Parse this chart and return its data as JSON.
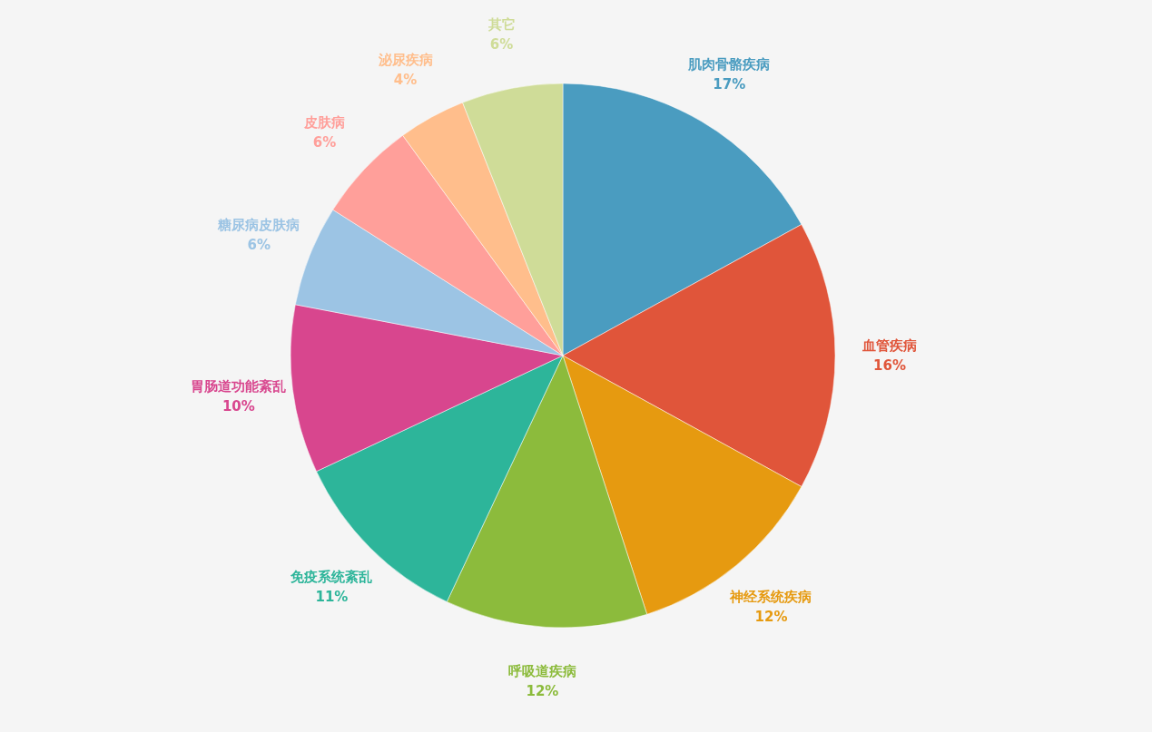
{
  "chart_data": {
    "type": "pie",
    "categories": [
      "肌肉骨骼疾病",
      "血管疾病",
      "神经系统疾病",
      "呼吸道疾病",
      "免疫系统紊乱",
      "胃肠道功能紊乱",
      "糖尿病皮肤病",
      "皮肤病",
      "泌尿疾病",
      "其它"
    ],
    "values": [
      17,
      16,
      12,
      12,
      11,
      10,
      6,
      6,
      4,
      6
    ],
    "value_labels": [
      "17%",
      "16%",
      "12%",
      "12%",
      "11%",
      "10%",
      "6%",
      "6%",
      "4%",
      "6%"
    ],
    "colors": [
      "#4a9cc0",
      "#e0553a",
      "#e69a10",
      "#8cbb3c",
      "#2db59a",
      "#d8468e",
      "#9cc4e4",
      "#ff9f9a",
      "#ffbe8c",
      "#cfdc98"
    ],
    "legend": false
  }
}
